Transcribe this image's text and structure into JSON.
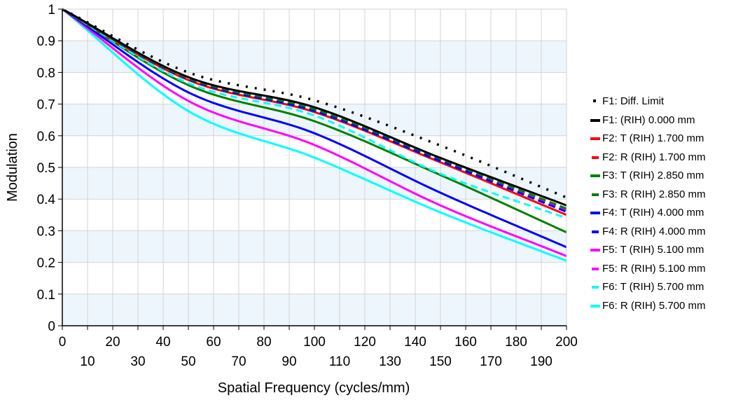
{
  "chart_data": {
    "type": "line",
    "title": "",
    "xlabel": "Spatial Frequency (cycles/mm)",
    "ylabel": "Modulation",
    "xlim": [
      0,
      200
    ],
    "ylim": [
      0,
      1
    ],
    "grid": true,
    "legend_position": "right",
    "x_ticks_upper": [
      "0",
      "20",
      "40",
      "60",
      "80",
      "100",
      "120",
      "140",
      "160",
      "180",
      "200"
    ],
    "x_ticks_lower": [
      "10",
      "30",
      "50",
      "70",
      "90",
      "110",
      "130",
      "150",
      "170",
      "190"
    ],
    "y_ticks": [
      "0",
      "0.1",
      "0.2",
      "0.3",
      "0.4",
      "0.5",
      "0.6",
      "0.7",
      "0.8",
      "0.9",
      "1"
    ],
    "x": [
      0,
      50,
      100,
      150,
      200
    ],
    "series": [
      {
        "name": "F1: Diff. Limit",
        "color": "#000000",
        "style": "dotted",
        "values": [
          1.0,
          0.8,
          0.712,
          0.569,
          0.405
        ]
      },
      {
        "name": "F1: (RIH) 0.000 mm",
        "color": "#000000",
        "style": "solid",
        "values": [
          1.0,
          0.785,
          0.69,
          0.53,
          0.38
        ]
      },
      {
        "name": "F2: T (RIH) 1.700 mm",
        "color": "#ff0000",
        "style": "solid",
        "values": [
          1.0,
          0.776,
          0.675,
          0.516,
          0.35
        ]
      },
      {
        "name": "F2: R (RIH) 1.700 mm",
        "color": "#ff0000",
        "style": "dashed",
        "values": [
          1.0,
          0.78,
          0.68,
          0.522,
          0.36
        ]
      },
      {
        "name": "F3: T (RIH) 2.850 mm",
        "color": "#008000",
        "style": "solid",
        "values": [
          1.0,
          0.76,
          0.646,
          0.476,
          0.295
        ]
      },
      {
        "name": "F3: R (RIH) 2.850 mm",
        "color": "#008000",
        "style": "dashed",
        "values": [
          1.0,
          0.782,
          0.684,
          0.527,
          0.37
        ]
      },
      {
        "name": "F4: T (RIH) 4.000 mm",
        "color": "#0000ff",
        "style": "solid",
        "values": [
          1.0,
          0.737,
          0.608,
          0.42,
          0.248
        ]
      },
      {
        "name": "F4: R (RIH) 4.000 mm",
        "color": "#0000ff",
        "style": "dashed",
        "values": [
          1.0,
          0.779,
          0.678,
          0.52,
          0.36
        ]
      },
      {
        "name": "F5: T (RIH) 5.100 mm",
        "color": "#ff00ff",
        "style": "solid",
        "values": [
          1.0,
          0.71,
          0.571,
          0.38,
          0.22
        ]
      },
      {
        "name": "F5: R (RIH) 5.100 mm",
        "color": "#ff00ff",
        "style": "dashed",
        "values": [
          1.0,
          0.78,
          0.679,
          0.522,
          0.365
        ]
      },
      {
        "name": "F6: T (RIH) 5.700 mm",
        "color": "#00ffff",
        "style": "dashed",
        "values": [
          1.0,
          0.766,
          0.664,
          0.48,
          0.34
        ]
      },
      {
        "name": "F6: R (RIH) 5.700 mm",
        "color": "#00ffff",
        "style": "solid",
        "values": [
          1.0,
          0.678,
          0.531,
          0.358,
          0.205
        ]
      }
    ]
  }
}
